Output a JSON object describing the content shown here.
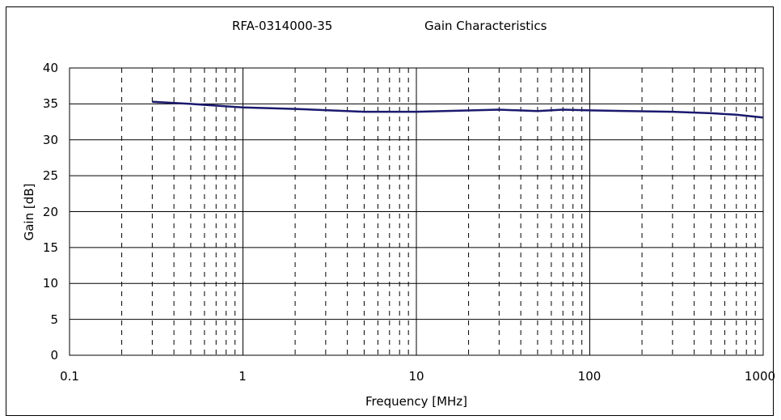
{
  "chart_data": {
    "type": "line",
    "title": "RFA-0314000-35",
    "subtitle": "Gain Characteristics",
    "xlabel": "Frequency [MHz]",
    "ylabel": "Gain [dB]",
    "x_scale": "log",
    "xlim": [
      0.1,
      1000
    ],
    "ylim": [
      0,
      40
    ],
    "x_ticks": [
      "0.1",
      "1",
      "10",
      "100",
      "1000"
    ],
    "y_ticks": [
      "0",
      "5",
      "10",
      "15",
      "20",
      "25",
      "30",
      "35",
      "40"
    ],
    "grid": true,
    "legend": "none",
    "series": [
      {
        "color": "#1a1a6e",
        "x": [
          0.3,
          0.5,
          1,
          2,
          5,
          10,
          30,
          50,
          70,
          100,
          300,
          500,
          700,
          1000
        ],
        "y": [
          35.3,
          35.0,
          34.5,
          34.3,
          33.9,
          33.9,
          34.2,
          34.0,
          34.2,
          34.1,
          33.9,
          33.7,
          33.5,
          33.1
        ]
      }
    ]
  }
}
